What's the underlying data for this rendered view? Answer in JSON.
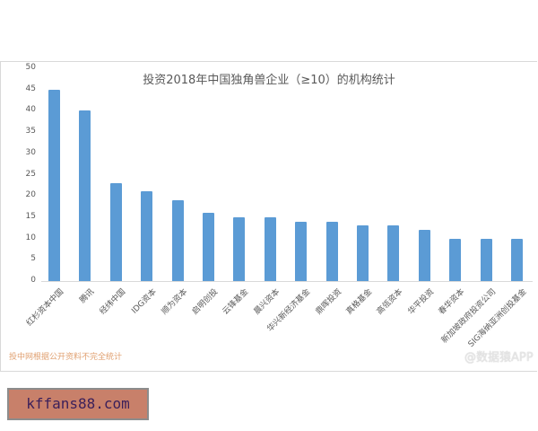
{
  "chart_data": {
    "type": "bar",
    "title": "投资2018年中国独角兽企业（≥10）的机构统计",
    "xlabel": "",
    "ylabel": "",
    "ylim": [
      0,
      50
    ],
    "yticks": [
      0,
      5,
      10,
      15,
      20,
      25,
      30,
      35,
      40,
      45,
      50
    ],
    "grid": false,
    "legend": null,
    "categories": [
      "红杉资本中国",
      "腾讯",
      "经纬中国",
      "IDG资本",
      "顺为资本",
      "启明创投",
      "云锋基金",
      "晨兴资本",
      "华兴新经济基金",
      "鼎晖投资",
      "真格基金",
      "高瓴资本",
      "华平投资",
      "春华资本",
      "新加坡政府投资公司",
      "SIG海纳亚洲创投基金"
    ],
    "values": [
      45,
      40,
      23,
      21,
      19,
      16,
      15,
      15,
      14,
      14,
      13,
      13,
      12,
      10,
      10,
      10
    ],
    "bar_color": "#5b9bd5"
  },
  "footnote": "投中网根据公开资料不完全统计",
  "weibo_watermark": "@数据猿APP",
  "site_watermark": "kffans88.com"
}
